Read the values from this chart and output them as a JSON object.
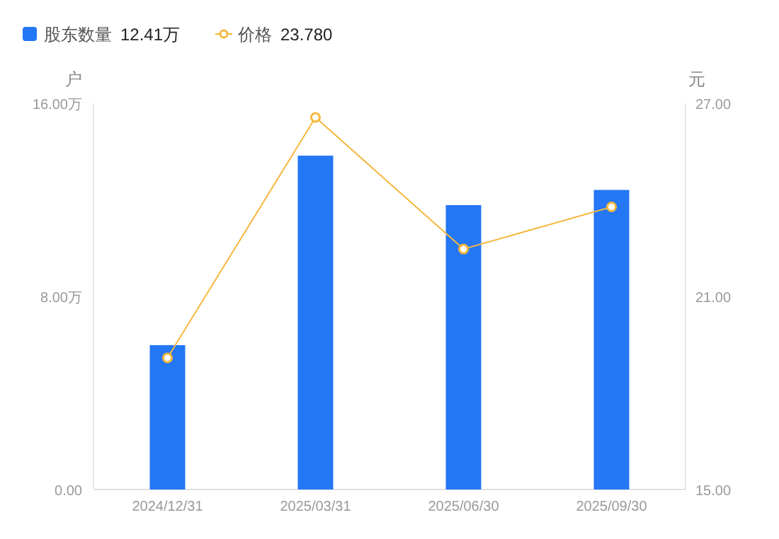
{
  "chart_data": {
    "type": "bar",
    "categories": [
      "2024/12/31",
      "2025/03/31",
      "2025/06/30",
      "2025/09/30"
    ],
    "ylabel": "户",
    "y2label": "元",
    "ylim": [
      0,
      16
    ],
    "yticks": [
      {
        "value": 0,
        "label": "0.00"
      },
      {
        "value": 8,
        "label": "8.00万"
      },
      {
        "value": 16,
        "label": "16.00万"
      }
    ],
    "y2lim": [
      15,
      27
    ],
    "y2ticks": [
      {
        "value": 15,
        "label": "15.00"
      },
      {
        "value": 21,
        "label": "21.00"
      },
      {
        "value": 27,
        "label": "27.00"
      }
    ],
    "series": [
      {
        "name": "股东数量",
        "color": "#2477f5",
        "values": [
          5.98,
          13.83,
          11.78,
          12.41
        ]
      },
      {
        "name": "价格",
        "type": "line",
        "axis": "y2",
        "color": "#f5b73d",
        "marker": "circle",
        "values": [
          19.09,
          26.56,
          22.47,
          23.78
        ]
      }
    ],
    "annotations": [
      "12.41万",
      "23.780"
    ],
    "legend": "top left"
  }
}
